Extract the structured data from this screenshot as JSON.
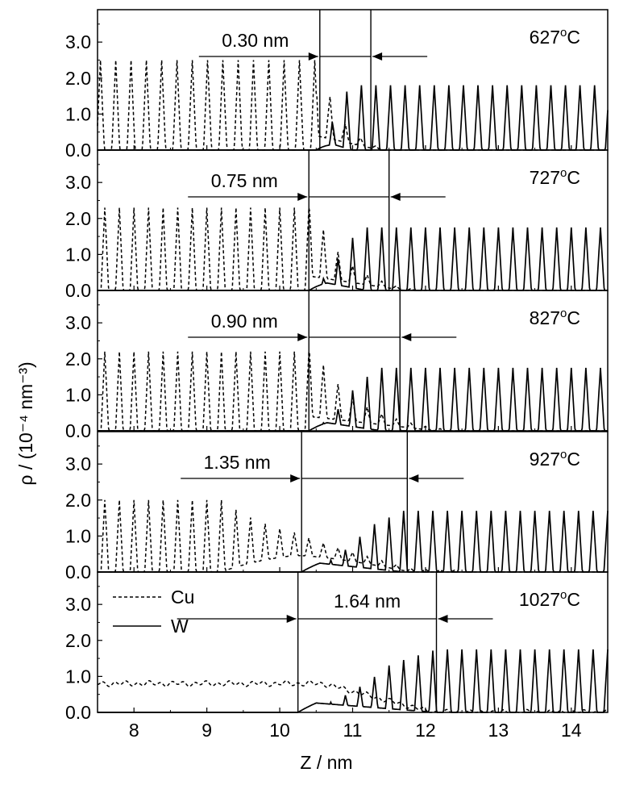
{
  "chart_data": {
    "type": "line",
    "xlabel": "Z / nm",
    "ylabel": "ρ / (10⁻⁴ nm⁻³)",
    "xlim": [
      7.5,
      14.5
    ],
    "ylim": [
      0,
      3.9
    ],
    "xticks": [
      "8",
      "9",
      "10",
      "11",
      "12",
      "13",
      "14"
    ],
    "yticks": [
      "0.0",
      "1.0",
      "2.0",
      "3.0"
    ],
    "legend": {
      "placement": "inside bottom panel, top-left",
      "entries": [
        {
          "label": "Cu",
          "style": "dashed"
        },
        {
          "label": "W",
          "style": "solid"
        }
      ]
    },
    "grid": false,
    "panels": [
      {
        "temperature": "627°C",
        "temperature_label": "627",
        "unit": "C",
        "interface_width": "0.30 nm",
        "interface_start": 10.55,
        "interface_end": 11.25,
        "cu_period": 0.21,
        "cu_phase": 7.54,
        "cu_peak": 2.5,
        "cu_front": 10.5,
        "cu_decay": 0.4,
        "cu_floor": 0.0,
        "w_period": 0.2,
        "w_phase": 11.32,
        "w_peak": 1.8,
        "w_start": 10.5,
        "w_rise": 0.5,
        "w_amp_start": 0.7
      },
      {
        "temperature": "727°C",
        "temperature_label": "727",
        "unit": "C",
        "interface_width": "0.75 nm",
        "interface_start": 10.4,
        "interface_end": 11.5,
        "cu_period": 0.2,
        "cu_phase": 7.6,
        "cu_peak": 2.3,
        "cu_front": 10.4,
        "cu_decay": 0.6,
        "cu_floor": 0.0,
        "w_period": 0.2,
        "w_phase": 11.6,
        "w_peak": 1.75,
        "w_start": 10.4,
        "w_rise": 0.8,
        "w_amp_start": 0.6
      },
      {
        "temperature": "827°C",
        "temperature_label": "827",
        "unit": "C",
        "interface_width": "0.90 nm",
        "interface_start": 10.4,
        "interface_end": 11.65,
        "cu_period": 0.2,
        "cu_phase": 7.6,
        "cu_peak": 2.2,
        "cu_front": 10.4,
        "cu_decay": 0.8,
        "cu_floor": 0.0,
        "w_period": 0.2,
        "w_phase": 11.8,
        "w_peak": 1.75,
        "w_start": 10.4,
        "w_rise": 1.0,
        "w_amp_start": 0.5
      },
      {
        "temperature": "927°C",
        "temperature_label": "927",
        "unit": "C",
        "interface_width": "1.35 nm",
        "interface_start": 10.3,
        "interface_end": 11.75,
        "cu_period": 0.2,
        "cu_phase": 7.6,
        "cu_peak": 2.0,
        "cu_front": 9.2,
        "cu_decay": 1.4,
        "cu_floor": 0.3,
        "w_period": 0.2,
        "w_phase": 11.9,
        "w_peak": 1.7,
        "w_start": 10.3,
        "w_rise": 1.4,
        "w_amp_start": 0.4
      },
      {
        "temperature": "1027°C",
        "temperature_label": "1027",
        "unit": "C",
        "interface_width": "1.64 nm",
        "interface_start": 10.25,
        "interface_end": 12.15,
        "cu_period": 0.2,
        "cu_phase": 7.6,
        "cu_peak": 0.8,
        "cu_front": 10.6,
        "cu_decay": 1.5,
        "cu_floor": 0.0,
        "cu_liquid": true,
        "w_period": 0.2,
        "w_phase": 12.3,
        "w_peak": 1.75,
        "w_start": 10.25,
        "w_rise": 1.9,
        "w_amp_start": 0.5
      }
    ]
  }
}
